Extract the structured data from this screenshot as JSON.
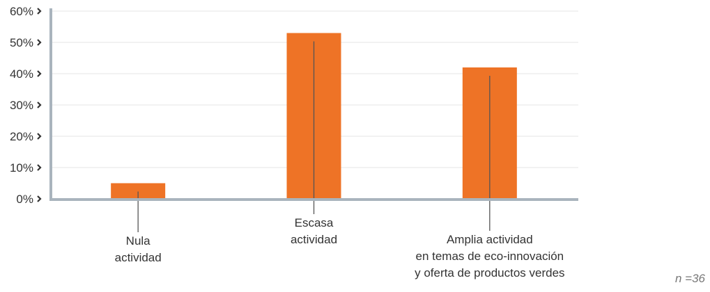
{
  "chart_data": {
    "type": "bar",
    "categories": [
      [
        "Nula",
        "actividad"
      ],
      [
        "Escasa",
        "actividad"
      ],
      [
        "Amplia actividad",
        "en temas de eco-innovación",
        "y oferta de productos verdes"
      ]
    ],
    "values": [
      5,
      53,
      42
    ],
    "color": "#ee7326",
    "ylim": [
      0,
      60
    ],
    "yticks": [
      {
        "value": 0,
        "label": "0%"
      },
      {
        "value": 10,
        "label": "10%"
      },
      {
        "value": 20,
        "label": "20%"
      },
      {
        "value": 30,
        "label": "30%"
      },
      {
        "value": 40,
        "label": "40%"
      },
      {
        "value": 50,
        "label": "50%"
      },
      {
        "value": 60,
        "label": "60%"
      }
    ],
    "grid": true,
    "annotation": "n =36"
  }
}
